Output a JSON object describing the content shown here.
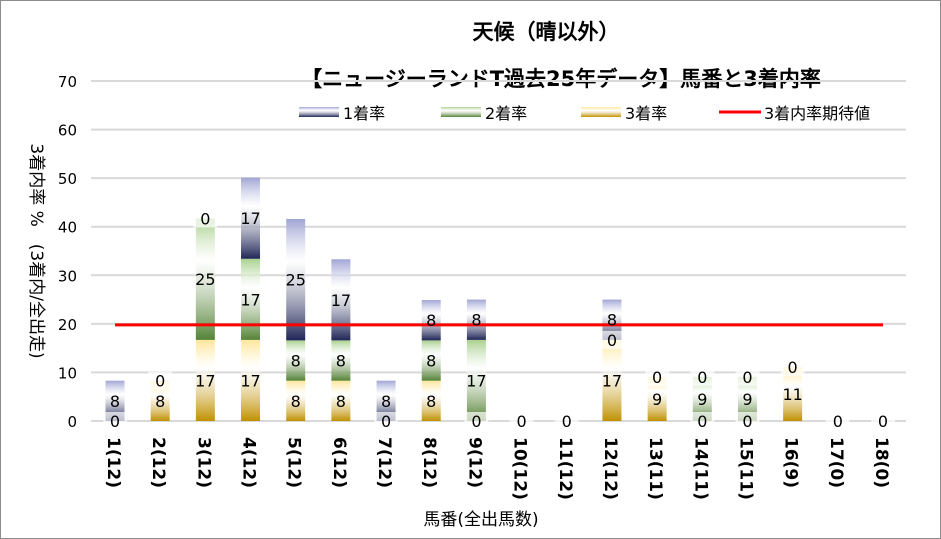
{
  "chart_data": {
    "type": "bar",
    "stacked": true,
    "title": "天候（晴以外）",
    "subtitle": "【ニュージーランドT過去25年データ】馬番と3着内率",
    "xlabel": "馬番(全出馬数)",
    "ylabel": "3着内率 %　(3着内/全出走)",
    "ylim": [
      0,
      70
    ],
    "yticks": [
      "0",
      "10",
      "20",
      "30",
      "40",
      "50",
      "60",
      "70"
    ],
    "grid": true,
    "legend_position": "top",
    "categories": [
      "1(12)",
      "2(12)",
      "3(12)",
      "4(12)",
      "5(12)",
      "6(12)",
      "7(12)",
      "8(12)",
      "9(12)",
      "10(12)",
      "11(12)",
      "12(12)",
      "13(11)",
      "14(11)",
      "15(11)",
      "16(9)",
      "17(0)",
      "18(0)"
    ],
    "series": [
      {
        "name": "3着率",
        "color_light": "#ffe699",
        "color_dark": "#bf9000",
        "values": [
          0,
          8.3,
          16.7,
          16.7,
          8.3,
          8.3,
          0,
          8.3,
          0,
          0,
          0,
          16.7,
          9.1,
          0,
          0,
          11.1,
          0,
          0
        ],
        "labels": [
          "0",
          "8",
          "17",
          "17",
          "8",
          "8",
          "0",
          "8",
          "0",
          "0",
          "0",
          "17",
          "9",
          "0",
          "0",
          "11",
          "0",
          "0"
        ]
      },
      {
        "name": "2着率",
        "color_light": "#a9d18e",
        "color_dark": "#548235",
        "values": [
          0,
          0,
          25,
          16.7,
          8.3,
          8.3,
          0,
          8.3,
          16.7,
          0,
          0,
          0,
          0,
          9.1,
          9.1,
          0,
          0,
          0
        ],
        "labels": [
          "",
          "0",
          "25",
          "17",
          "8",
          "8",
          "",
          "8",
          "17",
          "",
          "",
          "0",
          "0",
          "9",
          "9",
          "0",
          "",
          ""
        ]
      },
      {
        "name": "1着率",
        "color_light": "#a0a5d4",
        "color_dark": "#1f2556",
        "values": [
          8.3,
          0,
          0,
          16.7,
          25,
          16.7,
          8.3,
          8.3,
          8.3,
          0,
          0,
          8.3,
          0,
          0,
          0,
          0,
          0,
          0
        ],
        "labels": [
          "8",
          "",
          "0",
          "17",
          "25",
          "17",
          "8",
          "8",
          "8",
          "",
          "",
          "8",
          "",
          "0",
          "0",
          "",
          "",
          ""
        ]
      }
    ],
    "reference_line": {
      "name": "3着内率期待値",
      "value": 19.8,
      "color": "#ff0000"
    },
    "legend": [
      "1着率",
      "2着率",
      "3着率",
      "3着内率期待値"
    ]
  }
}
